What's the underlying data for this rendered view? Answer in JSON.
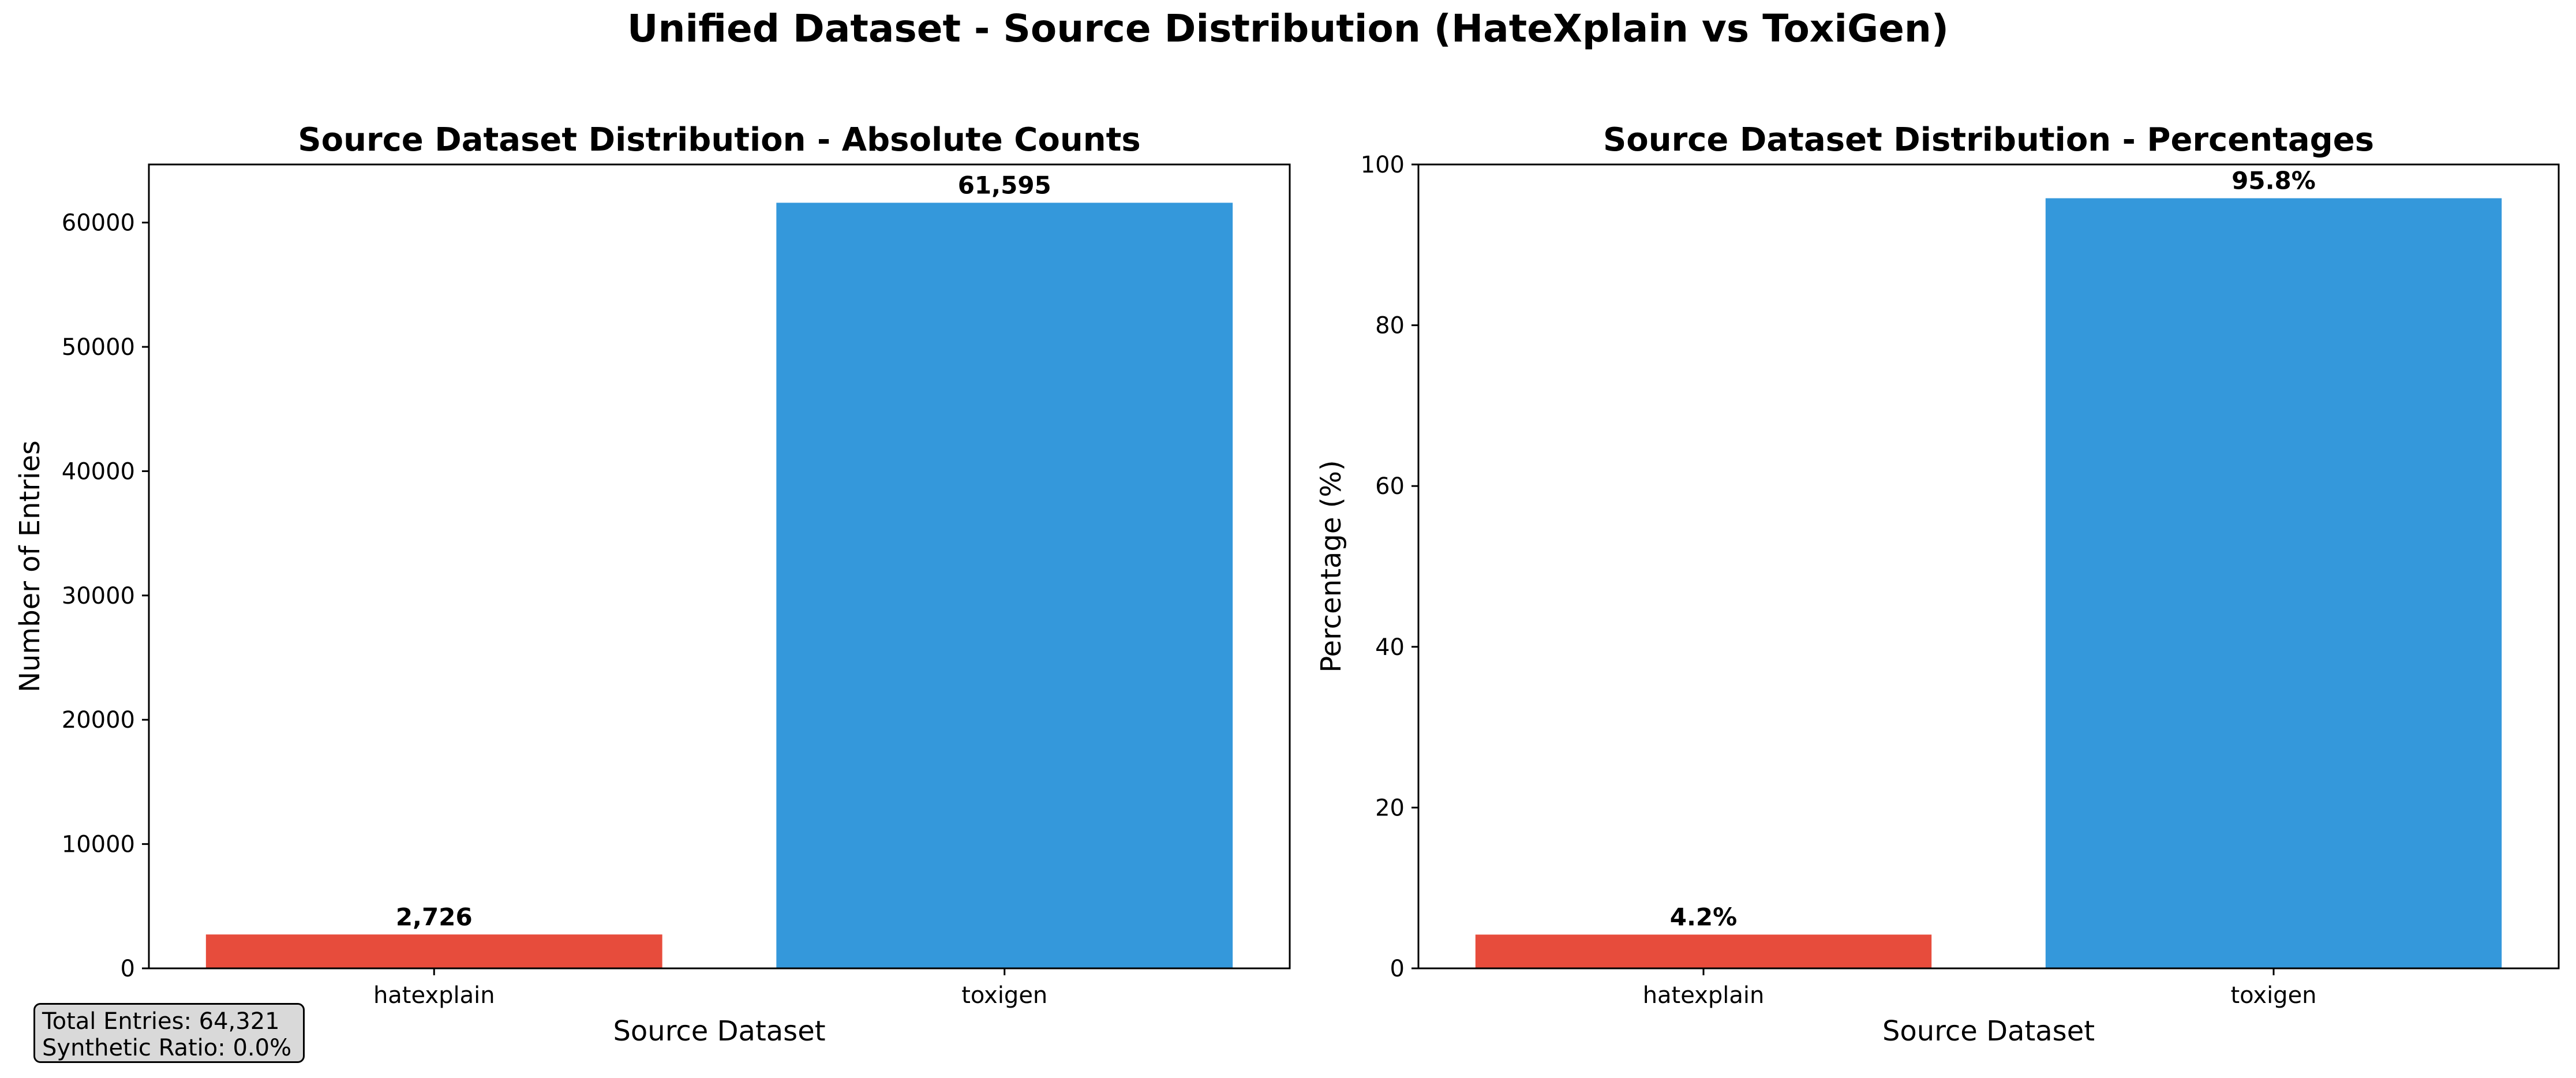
{
  "figure": {
    "suptitle": "Unified Dataset - Source Distribution (HateXplain vs ToxiGen)",
    "info_box": {
      "line1": "Total Entries: 64,321",
      "line2": "Synthetic Ratio: 0.0%"
    }
  },
  "colors": {
    "hatexplain": "#e74c3c",
    "toxigen": "#3498db"
  },
  "chart_data": [
    {
      "type": "bar",
      "title": "Source Dataset Distribution - Absolute Counts",
      "xlabel": "Source Dataset",
      "ylabel": "Number of Entries",
      "categories": [
        "hatexplain",
        "toxigen"
      ],
      "values": [
        2726,
        61595
      ],
      "data_labels": [
        "2,726",
        "61,595"
      ],
      "ylim": [
        0,
        64674.75
      ],
      "yticks": [
        0,
        10000,
        20000,
        30000,
        40000,
        50000,
        60000
      ],
      "grid": false,
      "legend": "none"
    },
    {
      "type": "bar",
      "title": "Source Dataset Distribution - Percentages",
      "xlabel": "Source Dataset",
      "ylabel": "Percentage (%)",
      "categories": [
        "hatexplain",
        "toxigen"
      ],
      "values": [
        4.2,
        95.8
      ],
      "data_labels": [
        "4.2%",
        "95.8%"
      ],
      "ylim": [
        0,
        100
      ],
      "yticks": [
        0,
        20,
        40,
        60,
        80,
        100
      ],
      "grid": false,
      "legend": "none"
    }
  ]
}
